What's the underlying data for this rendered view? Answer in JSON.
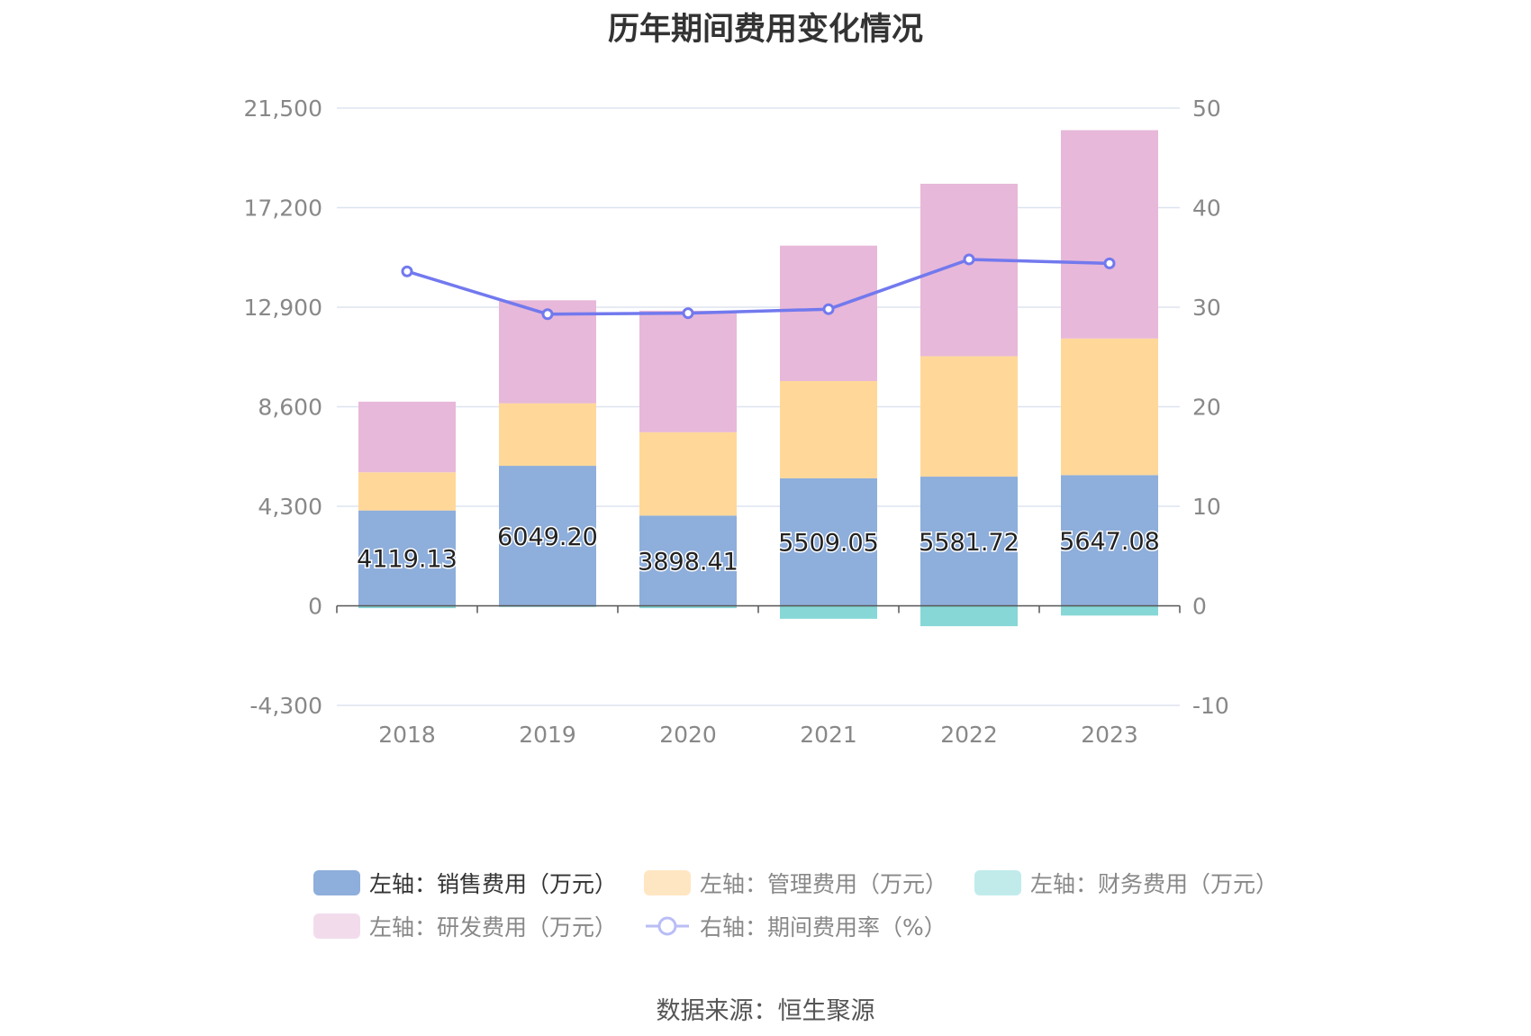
{
  "title": "历年期间费用变化情况",
  "source": "数据来源：恒生聚源",
  "colors": {
    "sales": "#8eaedb",
    "admin": "#ffd899",
    "finance": "#87d7d7",
    "rd": "#e7b8d9",
    "rate": "#7279ee",
    "grid": "#dde3ef",
    "axis": "#555555",
    "tick_text": "#888888"
  },
  "legend": [
    {
      "label": "左轴：销售费用（万元）",
      "color": "#8eaedb",
      "kind": "bar",
      "active": true
    },
    {
      "label": "左轴：管理费用（万元）",
      "color": "#ffe6c2",
      "kind": "bar",
      "active": false
    },
    {
      "label": "左轴：财务费用（万元）",
      "color": "#c1ebeb",
      "kind": "bar",
      "active": false
    },
    {
      "label": "左轴：研发费用（万元）",
      "color": "#f2dcec",
      "kind": "bar",
      "active": false
    },
    {
      "label": "右轴：期间费用率（%）",
      "color": "#b9bdf6",
      "kind": "line",
      "active": false
    }
  ],
  "chart_data": {
    "type": "bar",
    "stacked": true,
    "categories": [
      "2018",
      "2019",
      "2020",
      "2021",
      "2022",
      "2023"
    ],
    "series": [
      {
        "name": "左轴：销售费用（万元）",
        "axis": "left",
        "values": [
          4119.13,
          6049.2,
          3898.41,
          5509.05,
          5581.72,
          5647.08
        ]
      },
      {
        "name": "左轴：管理费用（万元）",
        "axis": "left",
        "values": [
          1650,
          2700,
          3600,
          4200,
          5200,
          5900
        ]
      },
      {
        "name": "左轴：财务费用（万元）",
        "axis": "left",
        "values": [
          -100,
          -50,
          -100,
          -560,
          -880,
          -420
        ]
      },
      {
        "name": "左轴：研发费用（万元）",
        "axis": "left",
        "values": [
          3050,
          4450,
          5250,
          5850,
          7450,
          9000
        ]
      },
      {
        "name": "右轴：期间费用率（%）",
        "axis": "right",
        "type": "line",
        "values": [
          33.6,
          29.3,
          29.4,
          29.8,
          34.8,
          34.4
        ]
      }
    ],
    "data_labels": [
      "4119.13",
      "6049.20",
      "3898.41",
      "5509.05",
      "5581.72",
      "5647.08"
    ],
    "left_axis": {
      "ticks": [
        -4300,
        0,
        4300,
        8600,
        12900,
        17200,
        21500
      ],
      "tick_labels": [
        "-4,300",
        "0",
        "4,300",
        "8,600",
        "12,900",
        "17,200",
        "21,500"
      ],
      "ylim": [
        -4300,
        21500
      ]
    },
    "right_axis": {
      "ticks": [
        -10,
        0,
        10,
        20,
        30,
        40,
        50
      ],
      "tick_labels": [
        "-10",
        "0",
        "10",
        "20",
        "30",
        "40",
        "50"
      ],
      "ylim": [
        -10,
        50
      ]
    },
    "grid": true,
    "legend_position": "bottom"
  }
}
